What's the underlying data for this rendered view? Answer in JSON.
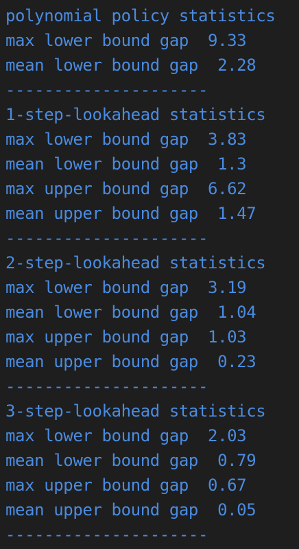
{
  "output": {
    "lines": [
      "polynomial policy statistics",
      "max lower bound gap  9.33",
      "mean lower bound gap  2.28",
      "---------------------",
      "1-step-lookahead statistics",
      "max lower bound gap  3.83",
      "mean lower bound gap  1.3",
      "max upper bound gap  6.62",
      "mean upper bound gap  1.47",
      "---------------------",
      "2-step-lookahead statistics",
      "max lower bound gap  3.19",
      "mean lower bound gap  1.04",
      "max upper bound gap  1.03",
      "mean upper bound gap  0.23",
      "---------------------",
      "3-step-lookahead statistics",
      "max lower bound gap  2.03",
      "mean lower bound gap  0.79",
      "max upper bound gap  0.67",
      "mean upper bound gap  0.05",
      "---------------------"
    ]
  },
  "colors": {
    "background": "#1e1e1e",
    "text": "#4a8be0"
  }
}
